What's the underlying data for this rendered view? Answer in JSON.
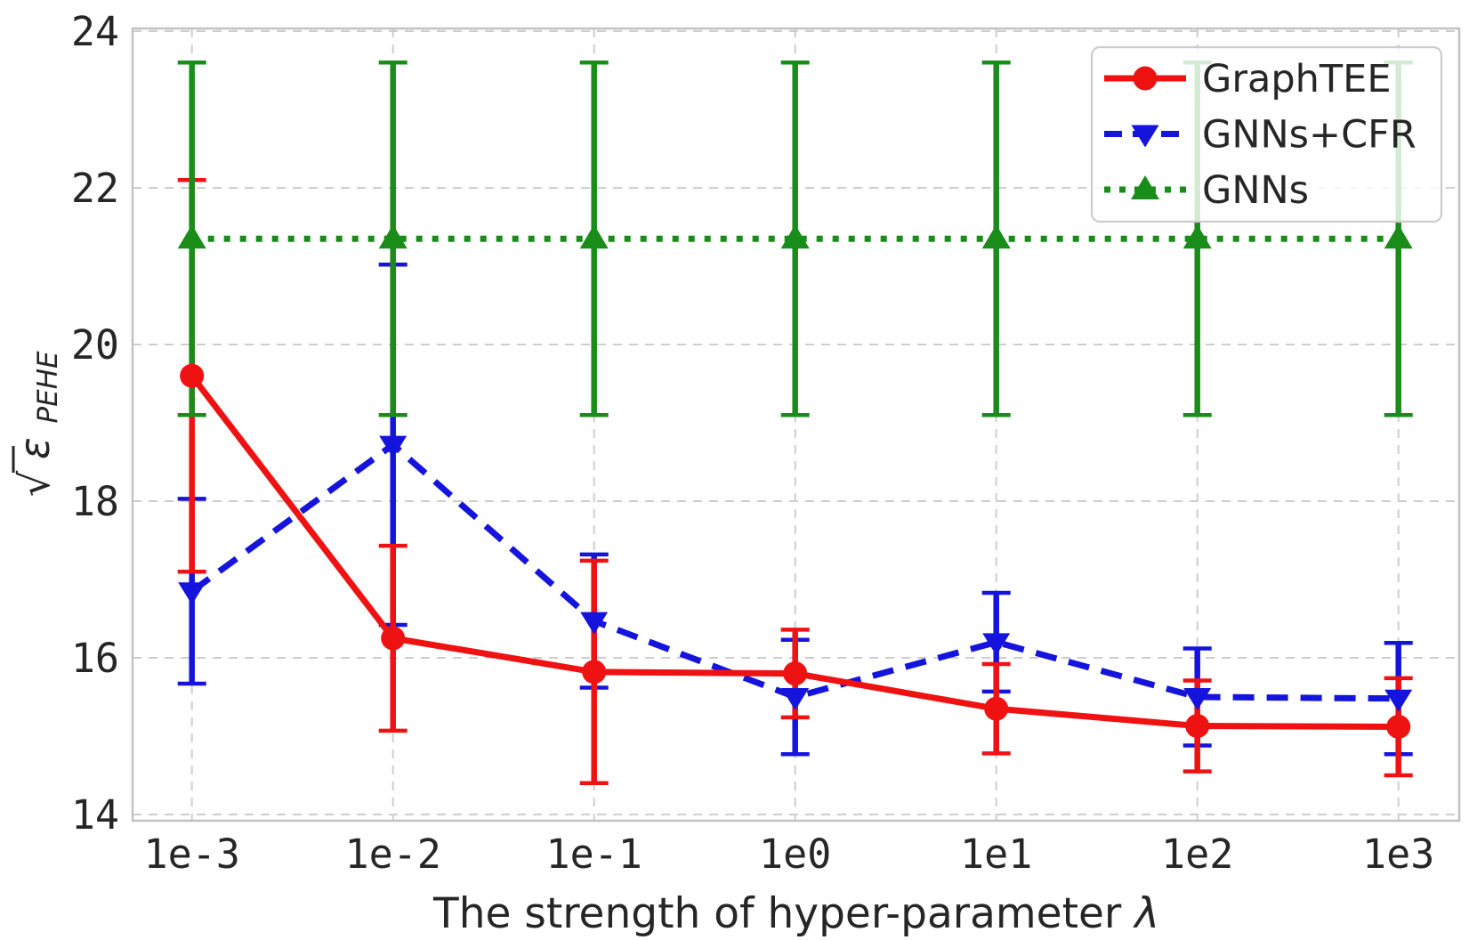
{
  "chart_data": {
    "type": "line",
    "title": "",
    "xlabel": "The strength of hyper-parameter λ",
    "xlabel_parts": {
      "text": "The strength of hyper-parameter ",
      "symbol": "λ"
    },
    "ylabel": "√ε_PEHE",
    "ylabel_parts": {
      "sqrt": "√",
      "var": "ε",
      "subscript": "PEHE"
    },
    "x_categories": [
      "1e-3",
      "1e-2",
      "1e-1",
      "1e0",
      "1e1",
      "1e2",
      "1e3"
    ],
    "y_ticks": [
      "14",
      "16",
      "18",
      "20",
      "22",
      "24"
    ],
    "ylim": [
      14,
      24
    ],
    "grid": "dashed",
    "legend_position": "upper-right",
    "colors": {
      "graphtee": "#ee1212",
      "gnns_cfr": "#1414dd",
      "gnns": "#1a8c1a",
      "grid": "#cdcdcd",
      "spine": "#c2c2c2",
      "text": "#262626"
    },
    "series": [
      {
        "name": "GraphTEE",
        "color": "#ee1212",
        "line_style": "solid",
        "marker": "circle",
        "values": [
          19.6,
          16.25,
          15.82,
          15.8,
          15.35,
          15.13,
          15.12
        ],
        "errors": [
          2.5,
          1.18,
          1.42,
          0.56,
          0.57,
          0.58,
          0.62
        ]
      },
      {
        "name": "GNNs+CFR",
        "color": "#1414dd",
        "line_style": "dashed",
        "marker": "triangle-down",
        "values": [
          16.85,
          18.72,
          16.47,
          15.5,
          16.2,
          15.5,
          15.48
        ],
        "errors": [
          1.18,
          2.3,
          0.85,
          0.73,
          0.63,
          0.62,
          0.71
        ]
      },
      {
        "name": "GNNs",
        "color": "#1a8c1a",
        "line_style": "dotted",
        "marker": "triangle-up",
        "values": [
          21.35,
          21.35,
          21.35,
          21.35,
          21.35,
          21.35,
          21.35
        ],
        "errors": [
          2.25,
          2.25,
          2.25,
          2.25,
          2.25,
          2.25,
          2.25
        ]
      }
    ]
  }
}
